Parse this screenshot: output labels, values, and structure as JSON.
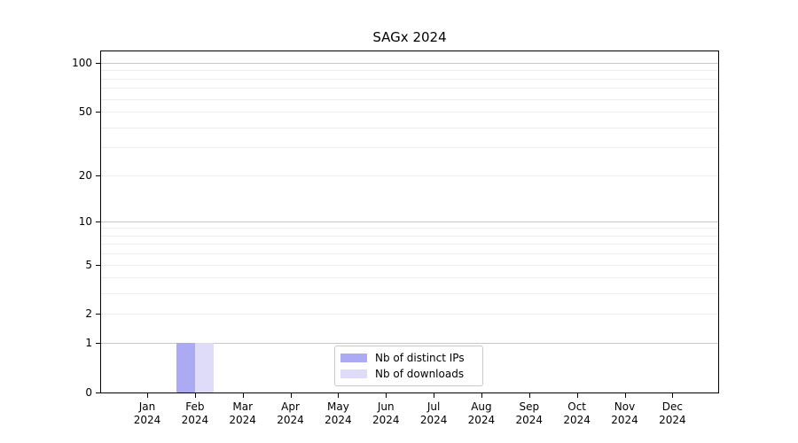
{
  "chart_data": {
    "type": "bar",
    "title": "SAGx 2024",
    "categories": [
      "Jan",
      "Feb",
      "Mar",
      "Apr",
      "May",
      "Jun",
      "Jul",
      "Aug",
      "Sep",
      "Oct",
      "Nov",
      "Dec"
    ],
    "x_year_label": "2024",
    "series": [
      {
        "name": "Nb of distinct IPs",
        "color": "#abaaf2",
        "values": [
          0,
          1,
          0,
          0,
          0,
          0,
          0,
          0,
          0,
          0,
          0,
          0
        ]
      },
      {
        "name": "Nb of downloads",
        "color": "#dedcf8",
        "values": [
          0,
          1,
          0,
          0,
          0,
          0,
          0,
          0,
          0,
          0,
          0,
          0
        ]
      }
    ],
    "y_axis": {
      "scale": "log1p",
      "ylim": [
        0,
        100
      ],
      "ticks": [
        100,
        50,
        20,
        10,
        5,
        2,
        1,
        0
      ],
      "major_gridlines": [
        1,
        10,
        100
      ],
      "minor_gridlines": [
        2,
        3,
        4,
        5,
        6,
        7,
        8,
        9,
        20,
        30,
        40,
        50,
        60,
        70,
        80,
        90
      ]
    },
    "legend": {
      "position": "bottom-center",
      "entries": [
        "Nb of distinct IPs",
        "Nb of downloads"
      ]
    },
    "colors": {
      "axis": "#000000",
      "major_grid": "#c6c6c6",
      "minor_grid": "#ededed",
      "legend_border": "#c9c9c9"
    }
  }
}
